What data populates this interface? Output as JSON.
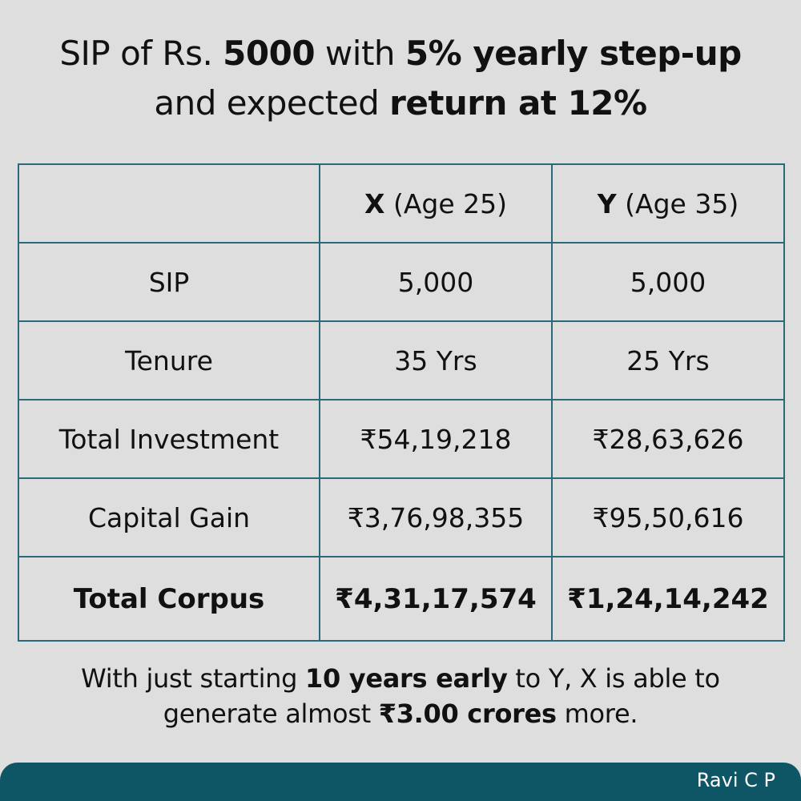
{
  "title": {
    "line1_a": "SIP of Rs. ",
    "line1_b": "5000",
    "line1_c": " with ",
    "line1_d": "5% yearly step-up",
    "line2_a": "and expected ",
    "line2_b": "return at 12%"
  },
  "table": {
    "header": {
      "col1_bold": "X",
      "col1_rest": " (Age 25)",
      "col2_bold": "Y",
      "col2_rest": " (Age 35)"
    },
    "rows": [
      {
        "label": "SIP",
        "x": "5,000",
        "y": "5,000"
      },
      {
        "label": "Tenure",
        "x": "35 Yrs",
        "y": "25 Yrs"
      },
      {
        "label": "Total Investment",
        "x": "₹54,19,218",
        "y": "₹28,63,626"
      },
      {
        "label": "Capital Gain",
        "x": "₹3,76,98,355",
        "y": "₹95,50,616"
      }
    ],
    "total": {
      "label": "Total Corpus",
      "x": "₹4,31,17,574",
      "y": "₹1,24,14,242"
    }
  },
  "note": {
    "a": "With just starting ",
    "b": "10 years early",
    "c": " to Y, X is able to",
    "d": "generate almost ",
    "e": "₹3.00 crores",
    "f": " more."
  },
  "footer": {
    "author": "Ravi C P"
  },
  "colors": {
    "background": "#dedede",
    "border": "#2a6a78",
    "footer": "#0e5566"
  }
}
